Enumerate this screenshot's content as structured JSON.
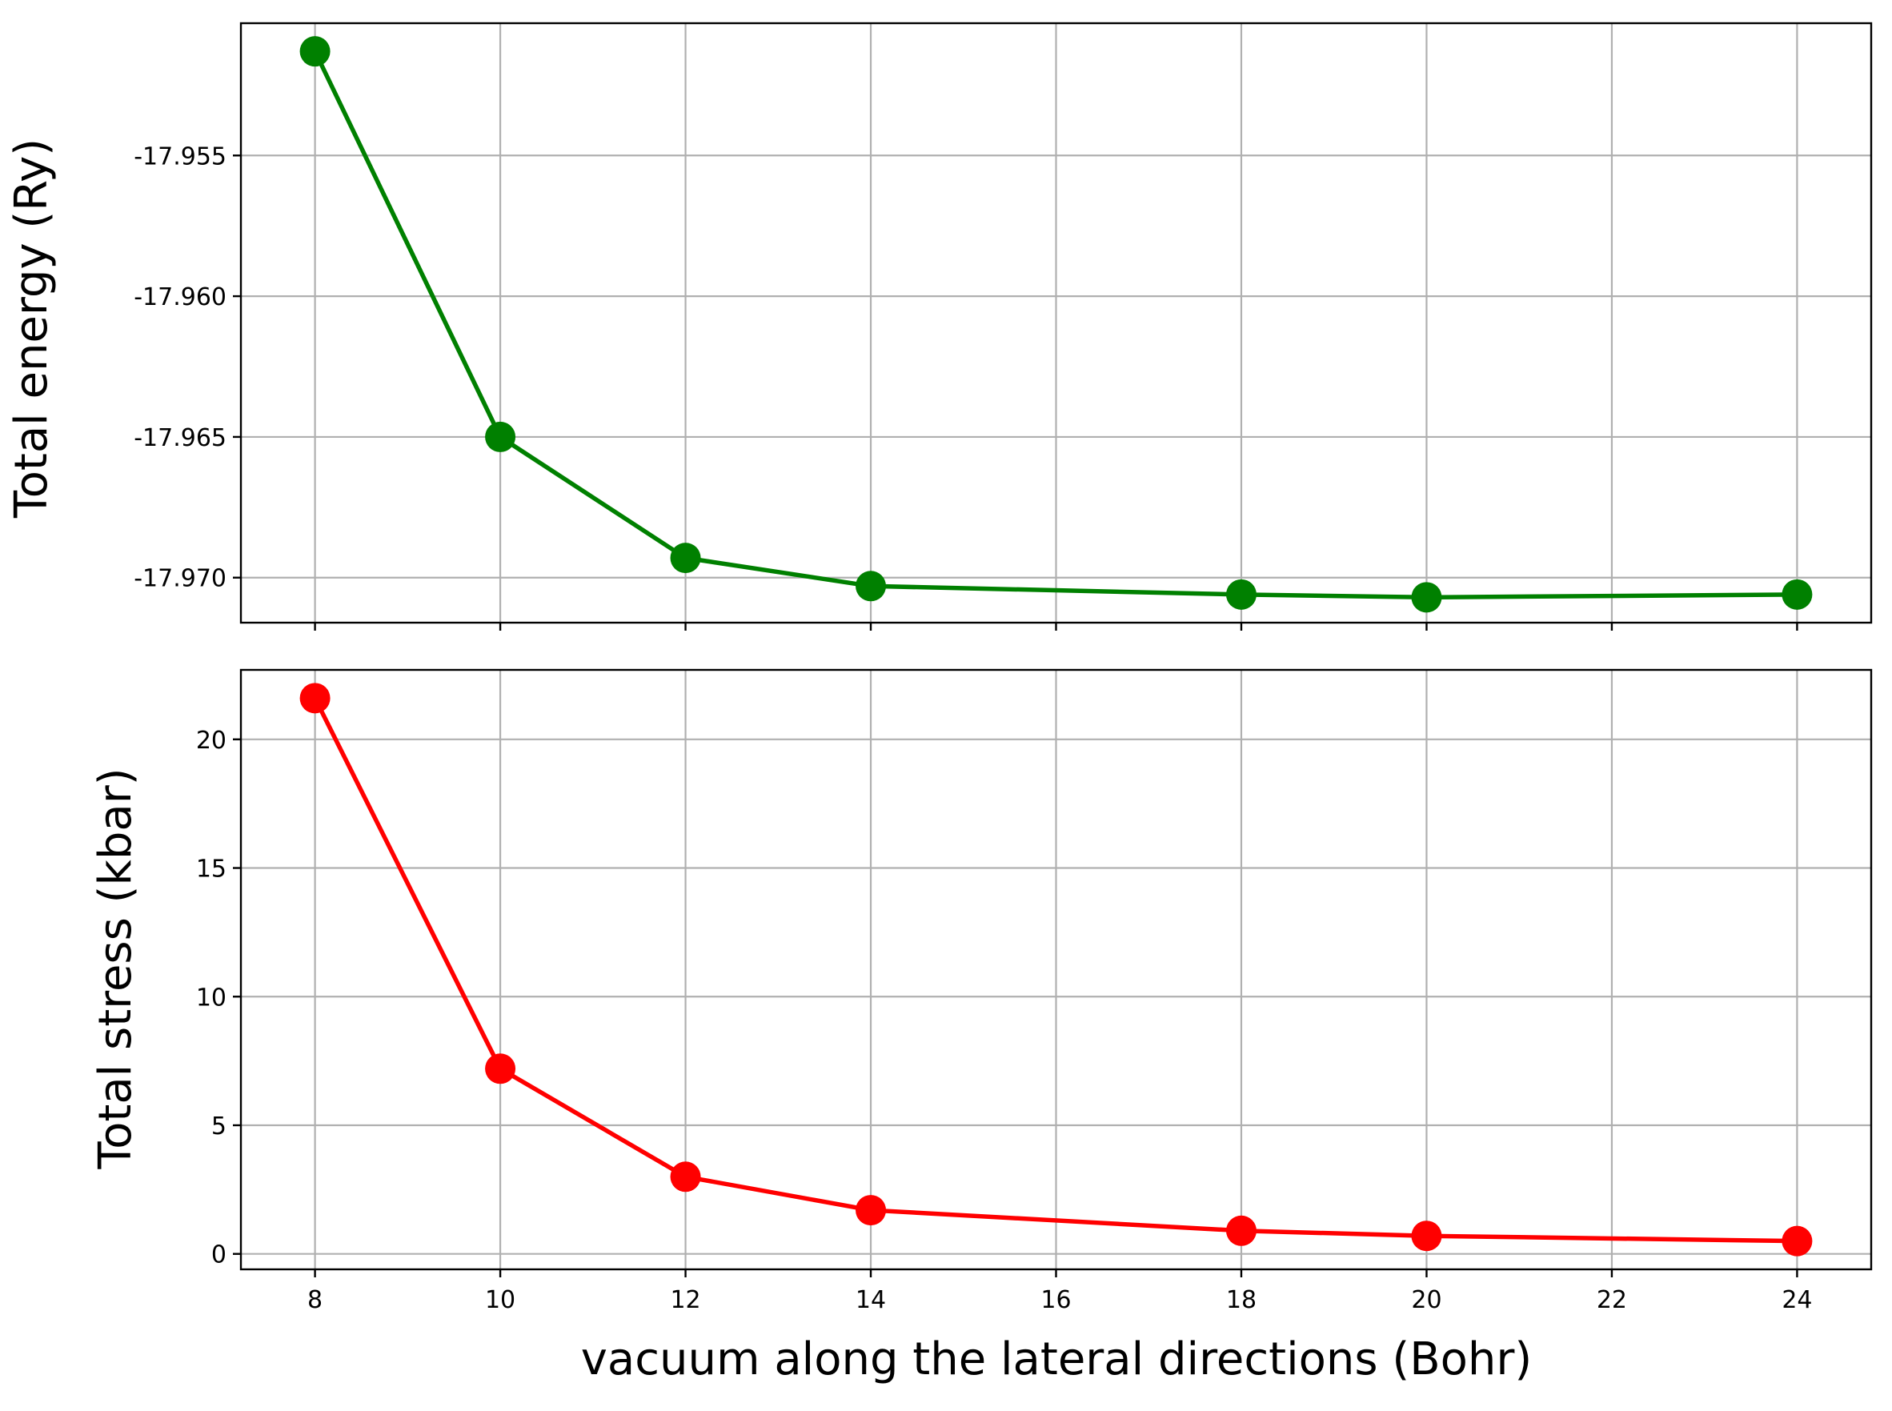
{
  "chart_data": {
    "type": "line",
    "shared_x": true,
    "x": [
      8,
      10,
      12,
      14,
      18,
      20,
      24
    ],
    "xlabel": "vacuum along the lateral directions (Bohr)",
    "xticks": [
      8,
      10,
      12,
      14,
      16,
      18,
      20,
      22,
      24
    ],
    "xlim": [
      7.2,
      24.8
    ],
    "grid": true,
    "panels": [
      {
        "ylabel": "Total energy (Ry)",
        "ylim": [
          -17.9716,
          -17.9503
        ],
        "yticks": [
          -17.955,
          -17.96,
          -17.965,
          -17.97
        ],
        "ytick_labels": [
          "-17.955",
          "-17.960",
          "-17.965",
          "-17.970"
        ],
        "color": "#008000",
        "marker": "circle",
        "values": [
          -17.9513,
          -17.965,
          -17.9693,
          -17.9703,
          -17.9706,
          -17.9707,
          -17.9706
        ]
      },
      {
        "ylabel": "Total stress (kbar)",
        "ylim": [
          -0.6,
          22.7
        ],
        "yticks": [
          0,
          5,
          10,
          15,
          20
        ],
        "ytick_labels": [
          "0",
          "5",
          "10",
          "15",
          "20"
        ],
        "color": "#ff0000",
        "marker": "circle",
        "values": [
          21.6,
          7.2,
          3.0,
          1.7,
          0.9,
          0.7,
          0.5
        ]
      }
    ]
  }
}
